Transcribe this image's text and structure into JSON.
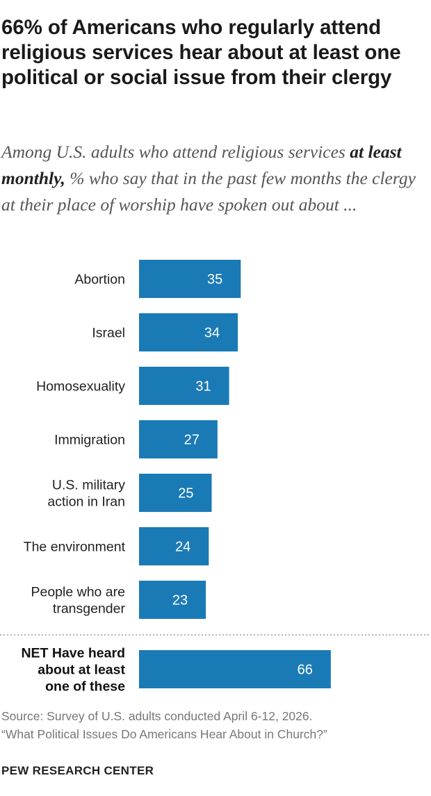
{
  "header": {
    "title": "66% of Americans who regularly attend religious services hear about at least one political or social issue from their clergy",
    "subtitle_pre": "Among U.S. adults who attend religious services ",
    "subtitle_bold": "at least monthly,",
    "subtitle_post": " % who say that in the past few months the clergy at their place of worship have spoken out about ..."
  },
  "chart_data": {
    "type": "bar",
    "orientation": "horizontal",
    "categories": [
      [
        "Abortion"
      ],
      [
        "Israel"
      ],
      [
        "Homosexuality"
      ],
      [
        "Immigration"
      ],
      [
        "U.S. military",
        "action in Iran"
      ],
      [
        "The environment"
      ],
      [
        "People who are",
        "transgender"
      ],
      [
        "NET Have heard",
        "about at least",
        "one of these"
      ]
    ],
    "values": [
      35,
      34,
      31,
      27,
      25,
      24,
      23,
      66
    ],
    "bar_color": "#1a7ab5",
    "value_label_color": "#ffffff",
    "net_category_bold": true,
    "separator_before_last": "dotted",
    "xlim": [
      0,
      100
    ],
    "grid": false,
    "legend": "none"
  },
  "footer": {
    "source_line1": "Source: Survey of U.S. adults conducted April 6-12, 2026.",
    "source_line2": "“What Political Issues Do Americans Hear About in Church?”",
    "org": "PEW RESEARCH CENTER"
  }
}
